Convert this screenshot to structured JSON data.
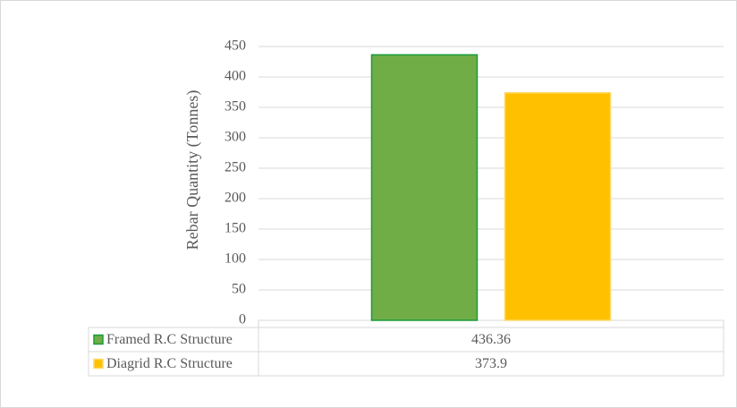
{
  "chart_data": {
    "type": "bar",
    "y_label": "Rebar Quantity (Tonnes)",
    "categories": [
      null
    ],
    "series": [
      {
        "name": "Framed R.C Structure",
        "color": "#70ad47",
        "border_color": "#1a9b3a",
        "values": [
          436.36
        ]
      },
      {
        "name": "Diagrid R.C Structure",
        "color": "#ffc000",
        "border_color": "#ffd966",
        "values": [
          373.9
        ]
      }
    ],
    "ylim": [
      0,
      450
    ],
    "yticks": [
      0,
      50,
      100,
      150,
      200,
      250,
      300,
      350,
      400,
      450
    ],
    "grid": true,
    "data_table": true
  }
}
